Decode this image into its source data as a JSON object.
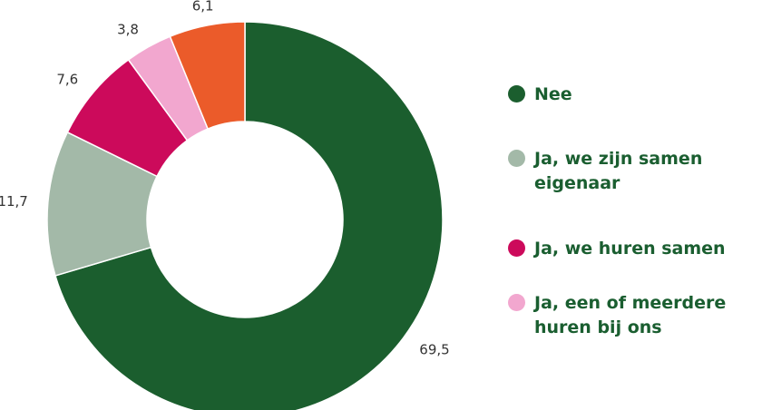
{
  "chart_data": {
    "type": "pie",
    "title": "",
    "xlabel": "",
    "ylabel": "",
    "donut": true,
    "legend_placement": "right",
    "categories": [
      "Nee",
      "Ja, we zijn samen eigenaar",
      "Ja, we huren samen",
      "Ja, een of meerdere huren bij ons",
      ""
    ],
    "values": [
      69.5,
      11.7,
      7.6,
      3.8,
      6.1
    ],
    "value_labels": [
      "69,5",
      "11,7",
      "7,6",
      "3,8",
      "6,1"
    ],
    "colors": [
      "#1b5e2e",
      "#a3b9a8",
      "#cc0a5b",
      "#f2a7cf",
      "#eb5b2a"
    ]
  },
  "legend": {
    "items": [
      {
        "label": "Nee",
        "color": "#1b5e2e"
      },
      {
        "label": "Ja, we zijn samen eigenaar",
        "color": "#a3b9a8"
      },
      {
        "label": "Ja, we huren samen",
        "color": "#cc0a5b"
      },
      {
        "label": "Ja, een of meerdere huren bij ons",
        "color": "#f2a7cf"
      }
    ]
  }
}
